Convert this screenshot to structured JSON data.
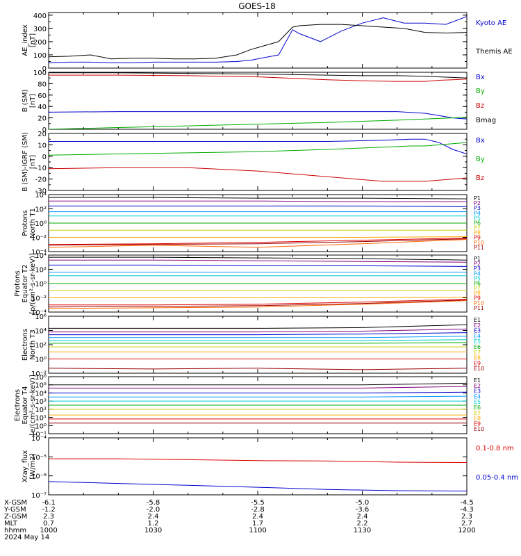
{
  "title": "GOES-18",
  "x_ticks": [
    "1000",
    "1030",
    "1100",
    "1130",
    "1200"
  ],
  "chart_data": [
    {
      "type": "line",
      "ylabel": [
        "AE_index",
        "[nT]"
      ],
      "ylim": [
        0,
        420
      ],
      "ylog": false,
      "yticks": [
        {
          "v": 0,
          "t": "0"
        },
        {
          "v": 100,
          "t": "100"
        },
        {
          "v": 200,
          "t": "200"
        },
        {
          "v": 300,
          "t": "300"
        },
        {
          "v": 400,
          "t": "400"
        }
      ],
      "x": [
        0,
        6,
        12,
        18,
        24,
        30,
        36,
        42,
        48,
        54,
        58,
        62,
        66,
        70,
        72,
        78,
        84,
        90,
        96,
        102,
        108,
        114,
        120
      ],
      "series": [
        {
          "name": "Kyoto AE",
          "color": "#0000cc",
          "values": [
            40,
            45,
            45,
            40,
            40,
            45,
            45,
            45,
            45,
            50,
            60,
            80,
            100,
            290,
            260,
            200,
            280,
            340,
            380,
            340,
            340,
            330,
            390
          ]
        },
        {
          "name": "Themis AE",
          "color": "#000000",
          "values": [
            85,
            90,
            100,
            70,
            75,
            75,
            70,
            70,
            75,
            100,
            140,
            170,
            200,
            310,
            320,
            330,
            330,
            320,
            310,
            300,
            270,
            265,
            270
          ]
        }
      ]
    },
    {
      "type": "line",
      "ylabel": [
        "B (SM)",
        "[nT]"
      ],
      "ylim": [
        0,
        100
      ],
      "ylog": false,
      "yticks": [
        {
          "v": 0,
          "t": "0"
        },
        {
          "v": 20,
          "t": "20"
        },
        {
          "v": 40,
          "t": "40"
        },
        {
          "v": 60,
          "t": "60"
        },
        {
          "v": 80,
          "t": "80"
        },
        {
          "v": 100,
          "t": "100"
        }
      ],
      "x": [
        0,
        20,
        40,
        60,
        80,
        90,
        100,
        108,
        112,
        116,
        120
      ],
      "series": [
        {
          "name": "Bx",
          "color": "#0000cc",
          "values": [
            30,
            31,
            31,
            31,
            31,
            31,
            31,
            28,
            24,
            20,
            18
          ]
        },
        {
          "name": "By",
          "color": "#00aa00",
          "values": [
            0,
            3,
            6,
            9,
            12,
            14,
            16,
            18,
            19,
            20,
            21
          ]
        },
        {
          "name": "Bz",
          "color": "#cc0000",
          "values": [
            95,
            95,
            94,
            92,
            87,
            85,
            84,
            84,
            86,
            87,
            88
          ]
        },
        {
          "name": "Bmag",
          "color": "#000000",
          "values": [
            99,
            99,
            98,
            97,
            95,
            94,
            94,
            93,
            92,
            91,
            90
          ]
        }
      ]
    },
    {
      "type": "line",
      "ylabel": [
        "B (SM)-IGRF (SM)",
        "[nT]"
      ],
      "ylim": [
        -30,
        20
      ],
      "ylog": false,
      "yticks": [
        {
          "v": -30,
          "t": "-30"
        },
        {
          "v": -20,
          "t": "-20"
        },
        {
          "v": -10,
          "t": "-10"
        },
        {
          "v": 0,
          "t": "0"
        },
        {
          "v": 10,
          "t": "10"
        },
        {
          "v": 20,
          "t": "20"
        }
      ],
      "x": [
        0,
        20,
        40,
        60,
        80,
        96,
        104,
        108,
        112,
        116,
        120
      ],
      "series": [
        {
          "name": "Bx",
          "color": "#0000cc",
          "values": [
            13,
            13,
            13,
            13,
            13,
            14,
            15,
            15,
            12,
            6,
            2
          ]
        },
        {
          "name": "By",
          "color": "#00aa00",
          "values": [
            1,
            2,
            3,
            4,
            6,
            8,
            9,
            9,
            10,
            11,
            12
          ]
        },
        {
          "name": "Bz",
          "color": "#cc0000",
          "values": [
            -11,
            -10,
            -10,
            -13,
            -18,
            -22,
            -22,
            -22,
            -21,
            -20,
            -19
          ]
        }
      ]
    },
    {
      "type": "line",
      "ylabel": [
        "Protons",
        "North T1"
      ],
      "ylim": [
        -4,
        4
      ],
      "ylog": true,
      "yticks": [
        {
          "v": -4,
          "t": "10⁻⁴"
        },
        {
          "v": -2,
          "t": "10⁻²"
        },
        {
          "v": 0,
          "t": "10⁰"
        },
        {
          "v": 2,
          "t": "10²"
        },
        {
          "v": 4,
          "t": "10⁴"
        }
      ],
      "x": [
        0,
        30,
        60,
        90,
        120
      ],
      "series": [
        {
          "name": "P1",
          "color": "#000000",
          "values": [
            3.6,
            3.6,
            3.5,
            3.5,
            3.4
          ]
        },
        {
          "name": "P2",
          "color": "#800080",
          "values": [
            3.1,
            3.1,
            3.1,
            3.0,
            3.0
          ]
        },
        {
          "name": "P3",
          "color": "#0000cc",
          "values": [
            2.4,
            2.4,
            2.4,
            2.4,
            2.3
          ]
        },
        {
          "name": "P4",
          "color": "#0099ff",
          "values": [
            1.6,
            1.6,
            1.6,
            1.6,
            1.6
          ]
        },
        {
          "name": "P5",
          "color": "#00cccc",
          "values": [
            1.0,
            1.0,
            1.0,
            1.0,
            1.0
          ]
        },
        {
          "name": "P6",
          "color": "#00aa00",
          "values": [
            0.0,
            0.0,
            0.0,
            0.0,
            0.0
          ]
        },
        {
          "name": "P7",
          "color": "#cccc00",
          "values": [
            -1.0,
            -1.0,
            -1.0,
            -1.0,
            -1.0
          ]
        },
        {
          "name": "P8",
          "color": "#ffaa00",
          "values": [
            -2.0,
            -2.0,
            -2.0,
            -2.0,
            -1.9
          ]
        },
        {
          "name": "P9",
          "color": "#dd0000",
          "values": [
            -3.0,
            -2.9,
            -2.7,
            -2.4,
            -2.1
          ]
        },
        {
          "name": "P10",
          "color": "#ff6600",
          "values": [
            -3.4,
            -3.1,
            -3.4,
            -2.9,
            -2.3
          ]
        },
        {
          "name": "P11",
          "color": "#990000",
          "values": [
            -3.1,
            -3.0,
            -2.9,
            -2.6,
            -2.2
          ]
        }
      ]
    },
    {
      "type": "line",
      "ylabel": [
        "Protons",
        "Equator T2",
        "[p/(cm²-s-sr-keV)]"
      ],
      "ylim": [
        -4,
        4
      ],
      "ylog": true,
      "yticks": [
        {
          "v": -4,
          "t": "10⁻⁴"
        },
        {
          "v": -2,
          "t": "10⁻²"
        },
        {
          "v": 0,
          "t": "10⁰"
        },
        {
          "v": 2,
          "t": "10²"
        },
        {
          "v": 4,
          "t": "10⁴"
        }
      ],
      "x": [
        0,
        30,
        60,
        90,
        120
      ],
      "series": [
        {
          "name": "P1",
          "color": "#000000",
          "values": [
            3.7,
            3.7,
            3.6,
            3.5,
            3.3
          ]
        },
        {
          "name": "P2",
          "color": "#800080",
          "values": [
            3.3,
            3.3,
            3.2,
            3.1,
            3.0
          ]
        },
        {
          "name": "P3",
          "color": "#0000cc",
          "values": [
            2.6,
            2.6,
            2.5,
            2.5,
            2.4
          ]
        },
        {
          "name": "P4",
          "color": "#0099ff",
          "values": [
            1.6,
            1.6,
            1.6,
            1.6,
            1.6
          ]
        },
        {
          "name": "P5",
          "color": "#00cccc",
          "values": [
            1.1,
            1.1,
            1.1,
            1.1,
            1.1
          ]
        },
        {
          "name": "P6",
          "color": "#00aa00",
          "values": [
            0.0,
            0.0,
            0.0,
            0.0,
            0.0
          ]
        },
        {
          "name": "P7",
          "color": "#cccc00",
          "values": [
            -1.0,
            -1.0,
            -1.0,
            -1.0,
            -1.0
          ]
        },
        {
          "name": "P8",
          "color": "#ffaa00",
          "values": [
            -2.0,
            -2.0,
            -2.0,
            -2.0,
            -1.9
          ]
        },
        {
          "name": "P9",
          "color": "#dd0000",
          "values": [
            -3.0,
            -3.0,
            -2.9,
            -2.6,
            -2.2
          ]
        },
        {
          "name": "P10",
          "color": "#ff6600",
          "values": [
            -3.5,
            -3.4,
            -3.3,
            -2.9,
            -2.4
          ]
        },
        {
          "name": "P11",
          "color": "#990000",
          "values": [
            -3.3,
            -3.2,
            -3.1,
            -2.8,
            -2.3
          ]
        }
      ]
    },
    {
      "type": "line",
      "ylabel": [
        "Electrons",
        "North T3"
      ],
      "ylim": [
        -2,
        6
      ],
      "ylog": true,
      "yticks": [
        {
          "v": -2,
          "t": "10⁻²"
        },
        {
          "v": 0,
          "t": "10⁰"
        },
        {
          "v": 2,
          "t": "10²"
        },
        {
          "v": 4,
          "t": "10⁴"
        },
        {
          "v": 6,
          "t": "10⁶"
        }
      ],
      "x": [
        0,
        30,
        60,
        90,
        120
      ],
      "series": [
        {
          "name": "E1",
          "color": "#000000",
          "values": [
            4.3,
            4.3,
            4.3,
            4.4,
            4.8
          ]
        },
        {
          "name": "E2",
          "color": "#800080",
          "values": [
            3.8,
            3.8,
            3.8,
            3.9,
            4.2
          ]
        },
        {
          "name": "E3",
          "color": "#0000cc",
          "values": [
            3.4,
            3.4,
            3.4,
            3.5,
            3.7
          ]
        },
        {
          "name": "E4",
          "color": "#0099ff",
          "values": [
            3.0,
            3.0,
            3.0,
            3.0,
            3.2
          ]
        },
        {
          "name": "E5",
          "color": "#00cccc",
          "values": [
            2.6,
            2.6,
            2.6,
            2.6,
            2.7
          ]
        },
        {
          "name": "E6",
          "color": "#00aa00",
          "values": [
            2.2,
            2.2,
            2.2,
            2.2,
            2.3
          ]
        },
        {
          "name": "E7",
          "color": "#cccc00",
          "values": [
            1.7,
            1.7,
            1.7,
            1.7,
            1.7
          ]
        },
        {
          "name": "E8",
          "color": "#ffaa00",
          "values": [
            1.0,
            1.0,
            1.0,
            1.0,
            1.0
          ]
        },
        {
          "name": "E9",
          "color": "#dd0000",
          "values": [
            0.0,
            0.0,
            0.0,
            0.0,
            0.0
          ]
        },
        {
          "name": "E10",
          "color": "#990000",
          "values": [
            -1.3,
            -1.4,
            -1.3,
            -1.5,
            -1.3
          ]
        }
      ]
    },
    {
      "type": "line",
      "ylabel": [
        "Electrons",
        "Equator T4",
        "[e/(cm²-s-sr-keV)]"
      ],
      "ylim": [
        -1,
        6
      ],
      "ylog": true,
      "yticks": [
        {
          "v": -1,
          "t": "10⁻¹"
        },
        {
          "v": 0,
          "t": "10⁰"
        },
        {
          "v": 1,
          "t": "10¹"
        },
        {
          "v": 2,
          "t": "10²"
        },
        {
          "v": 3,
          "t": "10³"
        },
        {
          "v": 4,
          "t": "10⁴"
        },
        {
          "v": 5,
          "t": "10⁵"
        },
        {
          "v": 6,
          "t": "10⁶"
        }
      ],
      "x": [
        0,
        30,
        60,
        90,
        120
      ],
      "series": [
        {
          "name": "E1",
          "color": "#000000",
          "values": [
            5.0,
            5.0,
            5.0,
            5.0,
            5.2
          ]
        },
        {
          "name": "E2",
          "color": "#800080",
          "values": [
            4.6,
            4.6,
            4.6,
            4.6,
            4.8
          ]
        },
        {
          "name": "E3",
          "color": "#0000cc",
          "values": [
            4.0,
            4.0,
            4.0,
            4.0,
            4.1
          ]
        },
        {
          "name": "E4",
          "color": "#0099ff",
          "values": [
            3.5,
            3.5,
            3.5,
            3.5,
            3.6
          ]
        },
        {
          "name": "E5",
          "color": "#00cccc",
          "values": [
            3.0,
            3.0,
            3.0,
            3.0,
            3.0
          ]
        },
        {
          "name": "E6",
          "color": "#00aa00",
          "values": [
            2.5,
            2.5,
            2.5,
            2.5,
            2.5
          ]
        },
        {
          "name": "E7",
          "color": "#cccc00",
          "values": [
            2.0,
            2.0,
            2.0,
            2.0,
            2.0
          ]
        },
        {
          "name": "E8",
          "color": "#ffaa00",
          "values": [
            1.3,
            1.3,
            1.3,
            1.3,
            1.3
          ]
        },
        {
          "name": "E9",
          "color": "#dd0000",
          "values": [
            0.8,
            0.8,
            0.8,
            0.8,
            0.8
          ]
        },
        {
          "name": "E10",
          "color": "#990000",
          "values": [
            0.3,
            0.3,
            0.3,
            0.3,
            0.3
          ]
        }
      ]
    },
    {
      "type": "line",
      "ylabel": [
        "Xray_flux",
        "[W/m2]"
      ],
      "ylim": [
        -7,
        -4
      ],
      "ylog": true,
      "yticks": [
        {
          "v": -7,
          "t": "10⁻⁷"
        },
        {
          "v": -6,
          "t": "10⁻⁶"
        },
        {
          "v": -5,
          "t": "10⁻⁵"
        },
        {
          "v": -4,
          "t": "10⁻⁴"
        }
      ],
      "x": [
        0,
        20,
        40,
        60,
        80,
        100,
        120
      ],
      "series": [
        {
          "name": "0.1-0.8 nm",
          "color": "#dd0000",
          "values": [
            -5.1,
            -5.1,
            -5.15,
            -5.2,
            -5.22,
            -5.28,
            -5.3
          ]
        },
        {
          "name": "0.05-0.4 nm",
          "color": "#0000cc",
          "values": [
            -6.3,
            -6.4,
            -6.5,
            -6.6,
            -6.72,
            -6.78,
            -6.8
          ]
        }
      ]
    }
  ],
  "footer": {
    "rows": [
      {
        "label": "X-GSM",
        "values": [
          "-6.1",
          "-5.8",
          "-5.5",
          "-5.0",
          "-4.5"
        ]
      },
      {
        "label": "Y-GSM",
        "values": [
          "-1.2",
          "-2.0",
          "-2.8",
          "-3.6",
          "-4.3"
        ]
      },
      {
        "label": "Z-GSM",
        "values": [
          "2.3",
          "2.4",
          "2.4",
          "2.4",
          "2.3"
        ]
      },
      {
        "label": "MLT",
        "values": [
          "0.7",
          "1.2",
          "1.7",
          "2.2",
          "2.7"
        ]
      },
      {
        "label": "hhmm",
        "values": [
          "1000",
          "1030",
          "1100",
          "1130",
          "1200"
        ]
      }
    ],
    "date": "2024 May 14"
  }
}
